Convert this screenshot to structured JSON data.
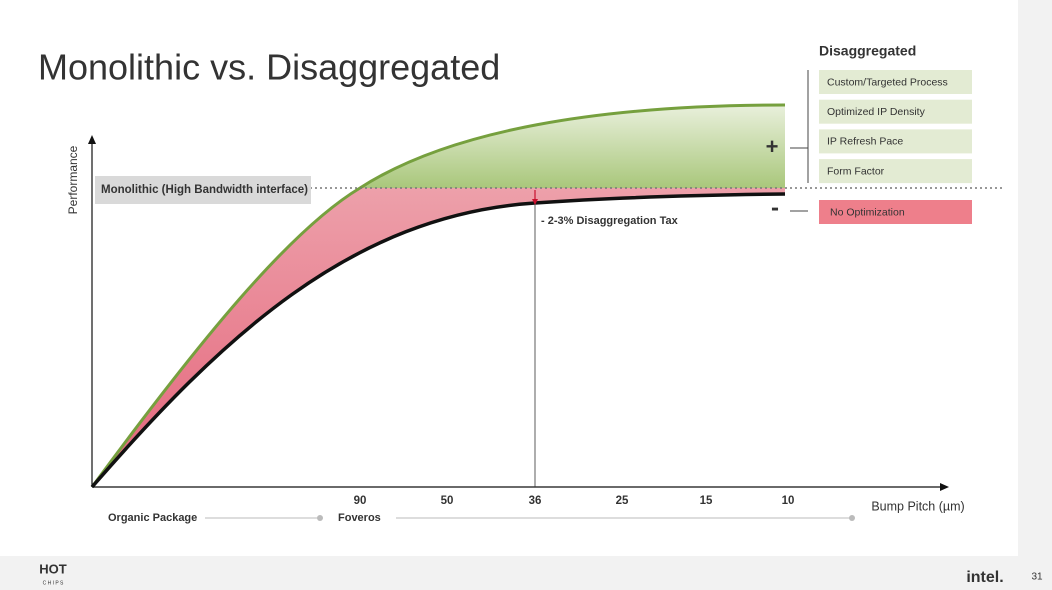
{
  "title": "Monolithic vs. Disaggregated",
  "axes": {
    "y_label": "Performance",
    "x_label": "Bump Pitch (µm)",
    "x_ticks": [
      "90",
      "50",
      "36",
      "25",
      "15",
      "10"
    ]
  },
  "reference_label": "Monolithic (High Bandwidth interface)",
  "annotation": "- 2-3% Disaggregation  Tax",
  "packaging": [
    "Organic Package",
    "Foveros"
  ],
  "sidebar": {
    "title": "Disaggregated",
    "plus_sign": "+",
    "pluses": [
      "Custom/Targeted Process",
      "Optimized IP Density",
      "IP Refresh Pace",
      "Form Factor"
    ],
    "minus_sign": "-",
    "minuses": [
      "No Optimization"
    ]
  },
  "footer": {
    "logo_top": "HOT",
    "logo_bottom": "C H I P S",
    "brand": "intel.",
    "page": "31"
  }
}
